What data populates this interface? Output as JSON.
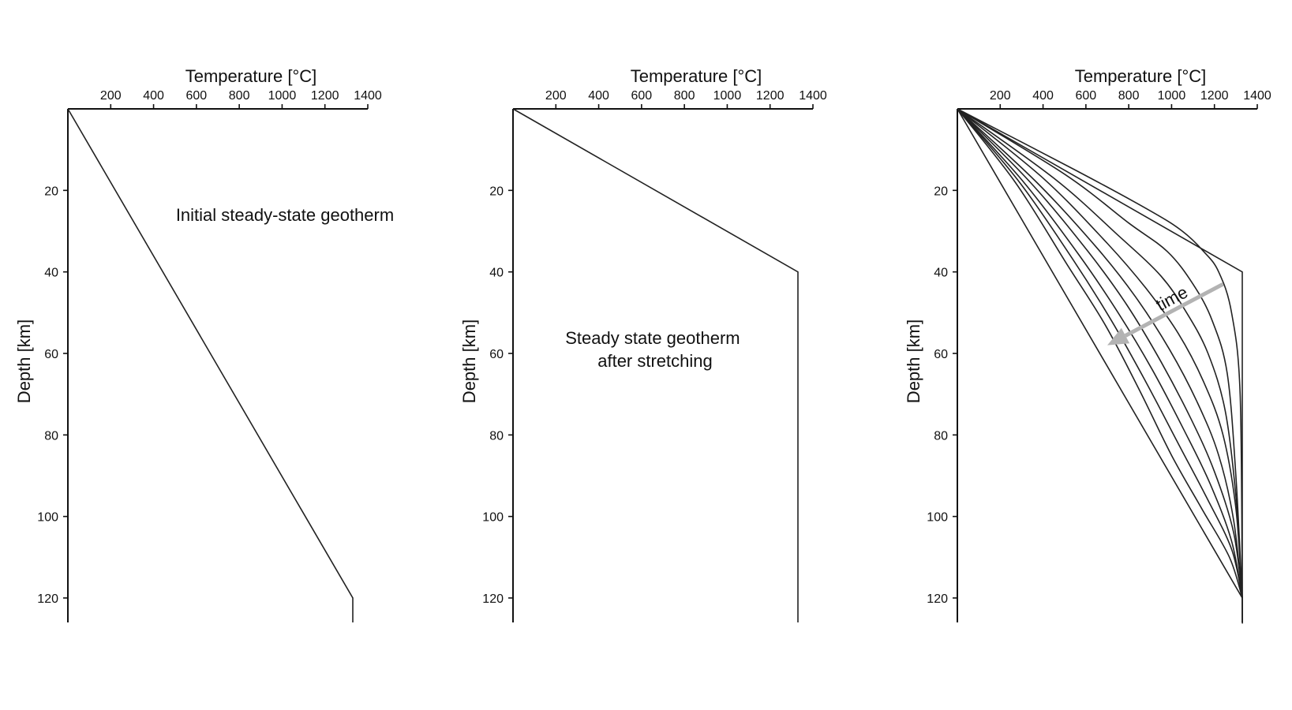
{
  "chart_data": [
    {
      "type": "line",
      "xlabel": "Temperature [°C]",
      "ylabel": "Depth [km]",
      "xticks": [
        200,
        400,
        600,
        800,
        1000,
        1200,
        1400
      ],
      "yticks": [
        20,
        40,
        60,
        80,
        100,
        120
      ],
      "xlim": [
        0,
        1400
      ],
      "ylim": [
        126,
        0
      ],
      "annotation": "Initial steady-state geotherm",
      "series": [
        {
          "x": [
            0,
            1330,
            1330
          ],
          "y": [
            0,
            120,
            126
          ]
        }
      ]
    },
    {
      "type": "line",
      "xlabel": "Temperature [°C]",
      "ylabel": "Depth [km]",
      "xticks": [
        200,
        400,
        600,
        800,
        1000,
        1200,
        1400
      ],
      "yticks": [
        20,
        40,
        60,
        80,
        100,
        120
      ],
      "xlim": [
        0,
        1400
      ],
      "ylim": [
        126,
        0
      ],
      "annotation": "Steady state geotherm\nafter stretching",
      "series": [
        {
          "x": [
            0,
            1330,
            1330
          ],
          "y": [
            0,
            40,
            126
          ]
        }
      ]
    },
    {
      "type": "line",
      "xlabel": "Temperature [°C]",
      "ylabel": "Depth [km]",
      "xticks": [
        200,
        400,
        600,
        800,
        1000,
        1200,
        1400
      ],
      "yticks": [
        20,
        40,
        60,
        80,
        100,
        120
      ],
      "xlim": [
        0,
        1400
      ],
      "ylim": [
        126,
        0
      ],
      "annotation": "time",
      "arrow": {
        "from": [
          1240,
          43
        ],
        "to": [
          700,
          58
        ]
      },
      "series": [
        {
          "x": [
            0,
            1330,
            1330
          ],
          "y": [
            0,
            40,
            126
          ]
        },
        {
          "x": [
            0,
            1330,
            1330
          ],
          "y": [
            0,
            120,
            126
          ]
        },
        {
          "x": [
            0,
            550,
            900,
            1050,
            1150,
            1220,
            1280,
            1320,
            1330,
            1330
          ],
          "y": [
            0,
            15,
            25,
            30,
            35,
            40,
            50,
            70,
            120,
            126
          ]
        },
        {
          "x": [
            0,
            500,
            800,
            980,
            1100,
            1190,
            1260,
            1300,
            1330
          ],
          "y": [
            0,
            16,
            28,
            35,
            43,
            52,
            65,
            90,
            120
          ]
        },
        {
          "x": [
            0,
            450,
            750,
            950,
            1070,
            1170,
            1250,
            1300,
            1330
          ],
          "y": [
            0,
            17,
            31,
            41,
            50,
            60,
            74,
            95,
            120
          ]
        },
        {
          "x": [
            0,
            400,
            700,
            880,
            1030,
            1150,
            1240,
            1300,
            1330
          ],
          "y": [
            0,
            17,
            33,
            44,
            55,
            67,
            80,
            98,
            120
          ]
        },
        {
          "x": [
            0,
            370,
            650,
            830,
            990,
            1120,
            1220,
            1290,
            1330
          ],
          "y": [
            0,
            18,
            34,
            46,
            59,
            72,
            85,
            101,
            120
          ]
        },
        {
          "x": [
            0,
            340,
            610,
            790,
            950,
            1090,
            1200,
            1290,
            1330
          ],
          "y": [
            0,
            18,
            35,
            48,
            62,
            76,
            89,
            104,
            120
          ]
        },
        {
          "x": [
            0,
            310,
            570,
            750,
            910,
            1060,
            1180,
            1280,
            1330
          ],
          "y": [
            0,
            18,
            36,
            50,
            64,
            79,
            92,
            106,
            120
          ]
        },
        {
          "x": [
            0,
            290,
            540,
            720,
            880,
            1030,
            1160,
            1280,
            1330
          ],
          "y": [
            0,
            18,
            37,
            52,
            67,
            82,
            95,
            108,
            120
          ]
        },
        {
          "x": [
            0,
            270,
            510,
            690,
            850,
            1000,
            1140,
            1270,
            1330
          ],
          "y": [
            0,
            18,
            38,
            53,
            69,
            85,
            98,
            110,
            120
          ]
        }
      ]
    }
  ],
  "colors": {
    "curve": "#222222",
    "axis": "#111111",
    "arrow": "#b3b3b3",
    "text": "#111111"
  }
}
